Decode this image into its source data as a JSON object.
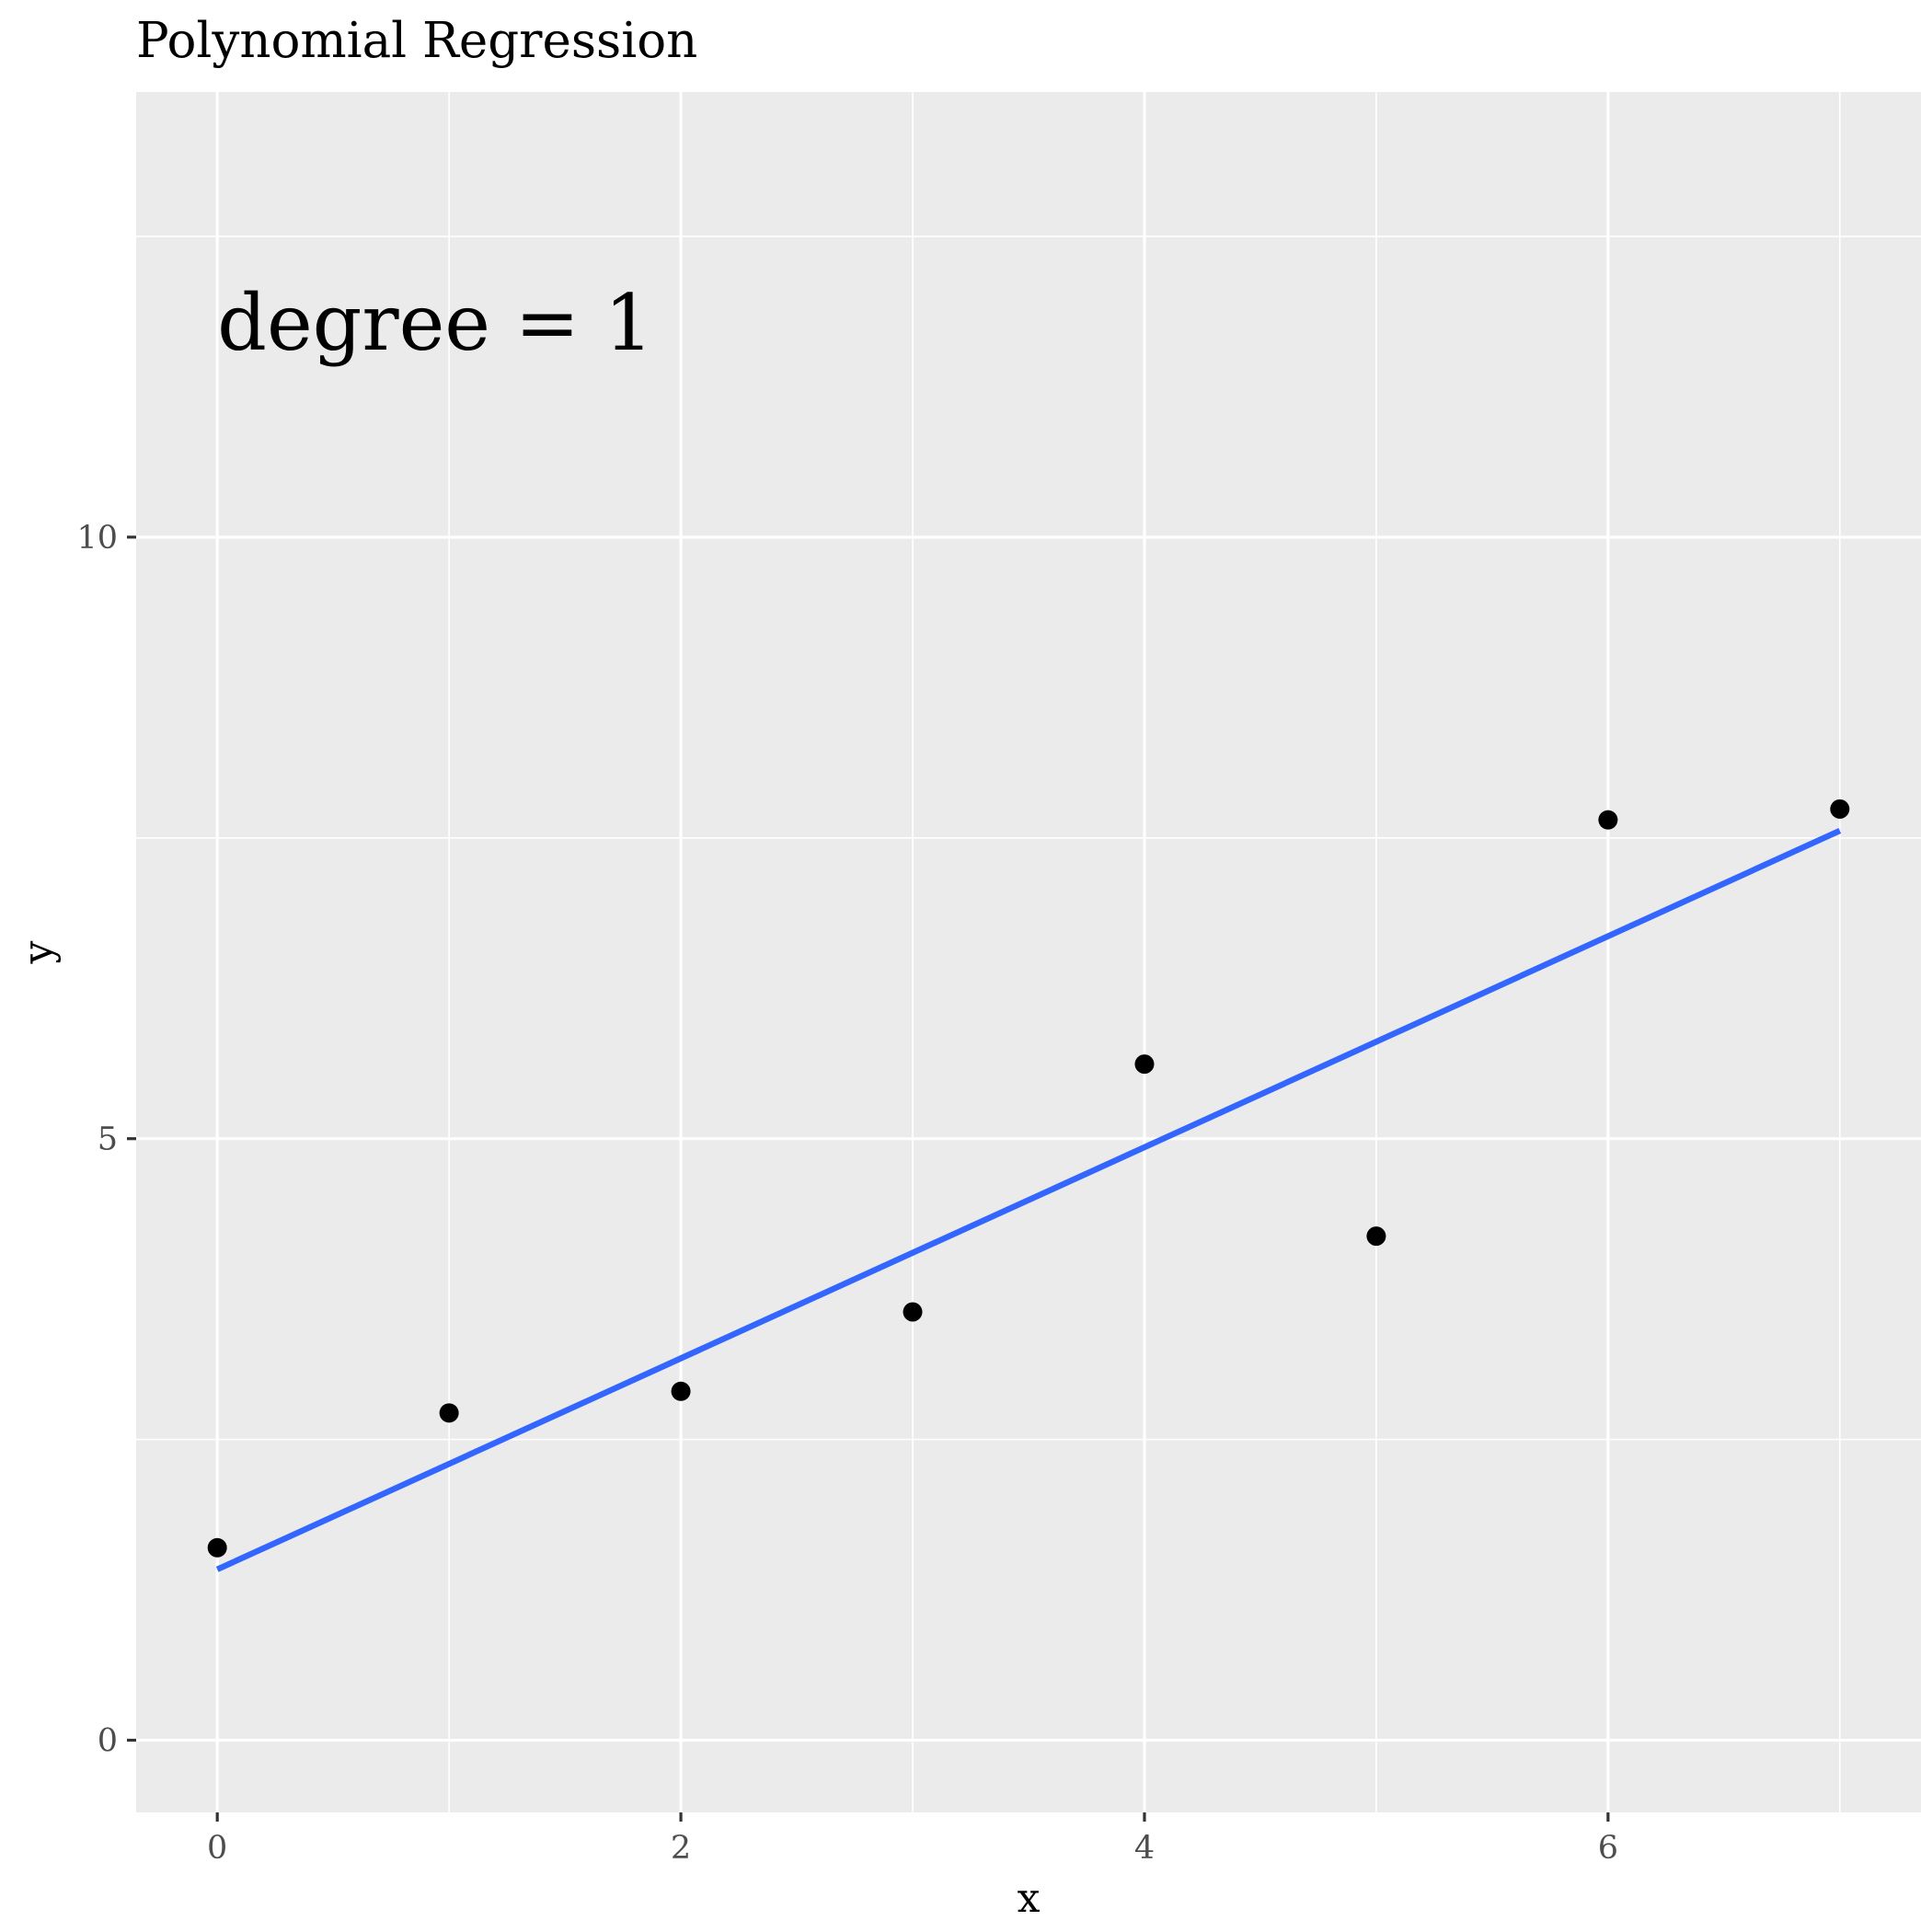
{
  "chart_data": {
    "type": "scatter",
    "title": "Polynomial Regression",
    "xlabel": "x",
    "ylabel": "y",
    "annotation": "degree = 1",
    "xlim": [
      -0.35,
      7.35
    ],
    "ylim": [
      -0.6,
      13.7
    ],
    "x_ticks": [
      0,
      2,
      4,
      6
    ],
    "x_tick_labels": [
      "0",
      "2",
      "4",
      "6"
    ],
    "x_minor_ticks": [
      1,
      3,
      5,
      7
    ],
    "y_ticks": [
      0,
      5,
      10
    ],
    "y_tick_labels": [
      "0",
      "5",
      "10"
    ],
    "y_minor_ticks": [
      2.5,
      7.5,
      12.5
    ],
    "grid": true,
    "points": {
      "x": [
        0,
        1,
        2,
        3,
        4,
        5,
        6,
        7
      ],
      "y": [
        1.6,
        2.72,
        2.9,
        3.56,
        5.62,
        4.19,
        7.65,
        7.74
      ]
    },
    "fit_line": {
      "degree": 1,
      "x": [
        0,
        7
      ],
      "y": [
        1.42,
        7.56
      ]
    },
    "colors": {
      "panel": "#EBEBEB",
      "grid": "#FFFFFF",
      "points": "#000000",
      "fit_line": "#3366FF",
      "tick_label": "#4D4D4D"
    }
  }
}
